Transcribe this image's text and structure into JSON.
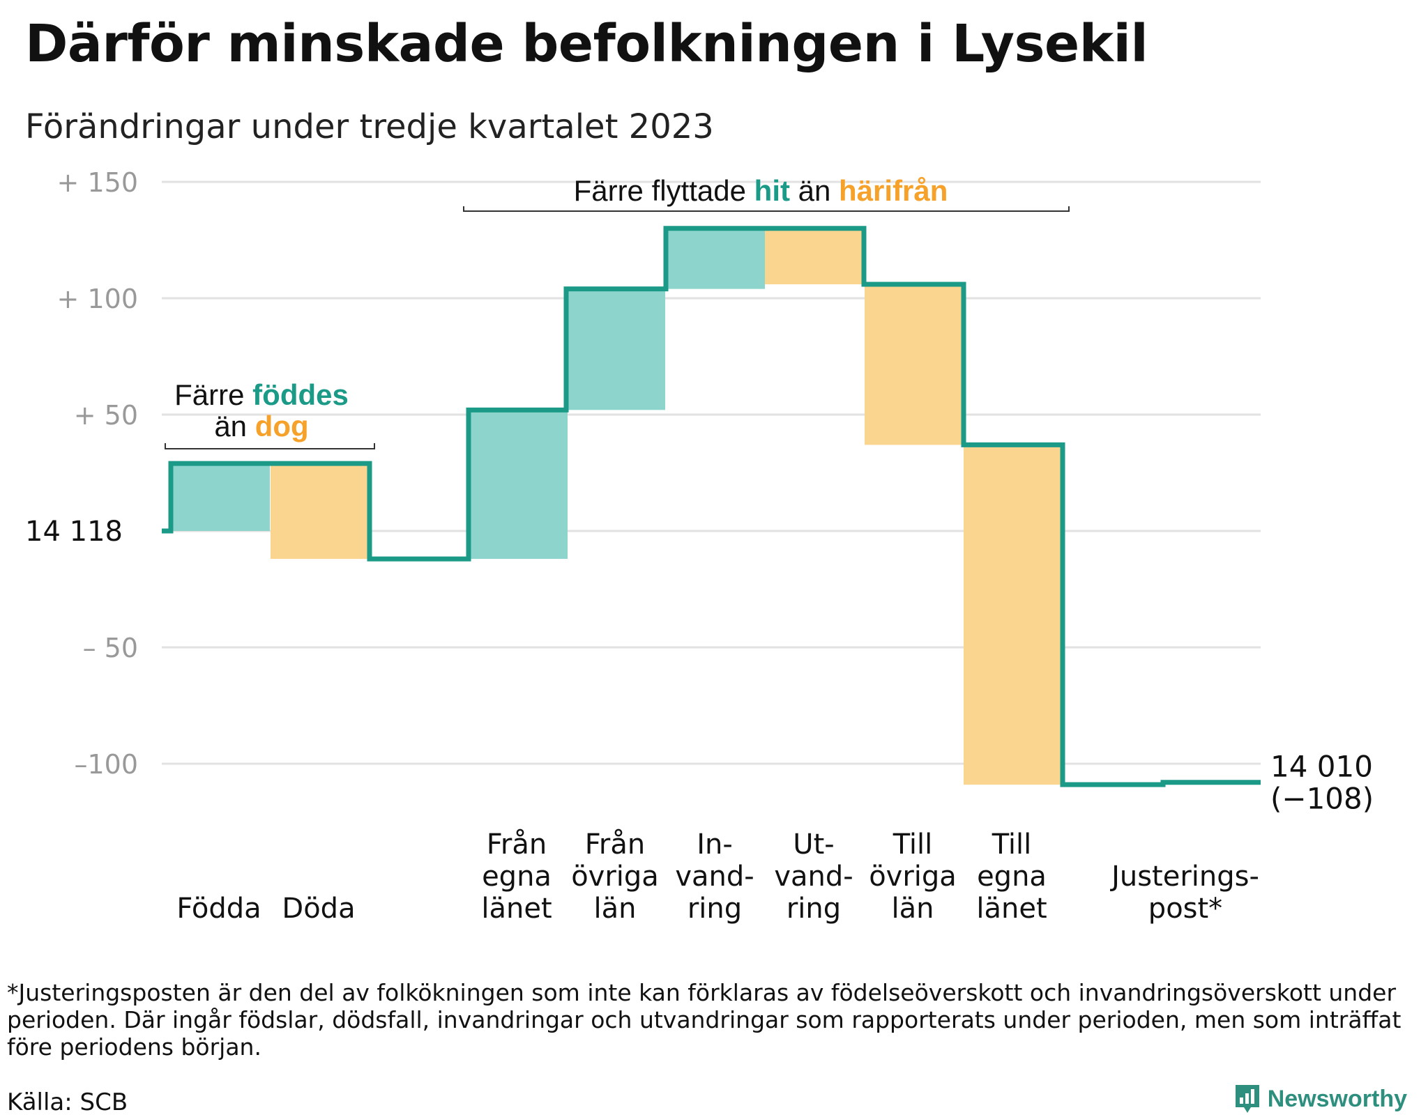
{
  "header": {
    "title": "Därför minskade befolkningen i Lysekil",
    "subtitle": "Förändringar under tredje kvartalet 2023"
  },
  "colors": {
    "positive_fill": "#8dd5cc",
    "negative_fill": "#fad58f",
    "step_line": "#1b9a88",
    "teal_text": "#1b9a88",
    "orange_text": "#f5a12a",
    "grid": "#e2e2e2",
    "tick_text": "#999999"
  },
  "chart_data": {
    "type": "waterfall",
    "start_label": "14 118",
    "start_value": 14118,
    "y_axis_ticks": [
      {
        "value": 150,
        "label": "+ 150"
      },
      {
        "value": 100,
        "label": "+ 100"
      },
      {
        "value": 50,
        "label": "+ 50"
      },
      {
        "value": -50,
        "label": "– 50"
      },
      {
        "value": -100,
        "label": "–100"
      }
    ],
    "ylim": [
      -115,
      160
    ],
    "steps": [
      {
        "name": "Födda",
        "label_lines": [
          "Födda"
        ],
        "change": 29
      },
      {
        "name": "Döda",
        "label_lines": [
          "Döda"
        ],
        "change": -41
      },
      {
        "name": "Från egna länet",
        "label_lines": [
          "Från",
          "egna",
          "länet"
        ],
        "change": 64
      },
      {
        "name": "Från övriga län",
        "label_lines": [
          "Från",
          "övriga",
          "län"
        ],
        "change": 52
      },
      {
        "name": "Invandring",
        "label_lines": [
          "In-",
          "vand-",
          "ring"
        ],
        "change": 26
      },
      {
        "name": "Utvandring",
        "label_lines": [
          "Ut-",
          "vand-",
          "ring"
        ],
        "change": -24
      },
      {
        "name": "Till övriga län",
        "label_lines": [
          "Till",
          "övriga",
          "län"
        ],
        "change": -69
      },
      {
        "name": "Till egna länet",
        "label_lines": [
          "Till",
          "egna",
          "länet"
        ],
        "change": -146
      },
      {
        "name": "Justeringspost*",
        "label_lines": [
          "Justerings-",
          "post*"
        ],
        "change": 1
      }
    ],
    "end_label": "14 010",
    "end_change_label": "(−108)",
    "annotations": [
      {
        "parts": [
          {
            "text": "Färre ",
            "style": "plain"
          },
          {
            "text": "föddes",
            "style": "teal"
          }
        ],
        "line2": [
          {
            "text": "än ",
            "style": "plain"
          },
          {
            "text": "dog",
            "style": "orange"
          }
        ]
      },
      {
        "parts": [
          {
            "text": "Färre flyttade ",
            "style": "plain"
          },
          {
            "text": "hit",
            "style": "teal"
          },
          {
            "text": " än ",
            "style": "plain"
          },
          {
            "text": "härifrån",
            "style": "orange"
          }
        ]
      }
    ]
  },
  "footer": {
    "footnote": "*Justeringsposten är den del av folkökningen som inte kan förklaras av födelseöverskott och invandringsöverskott under perioden. Där ingår födslar, dödsfall, invandringar och utvandringar som rapporterats under perioden, men som inträffat före periodens början.",
    "source": "Källa: SCB",
    "brand": "Newsworthy",
    "brand_icon": "newsworthy-logo-icon"
  }
}
